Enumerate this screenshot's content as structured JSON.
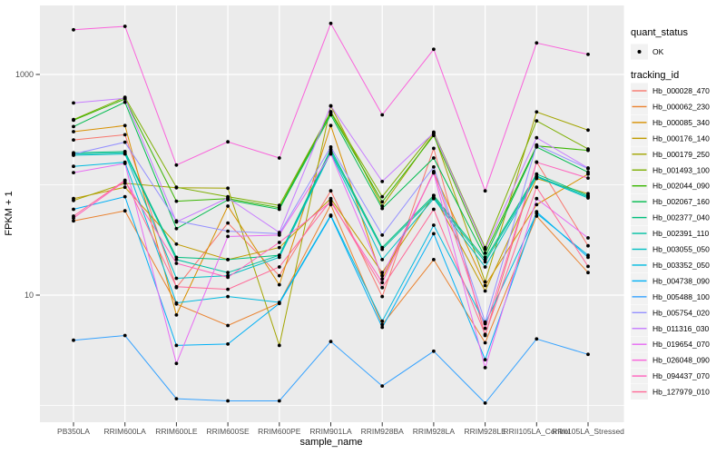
{
  "figure": {
    "background": "#FFFFFF",
    "panel_background": "#EBEBEB",
    "gridline_color": "#FFFFFF",
    "tick_color": "#333333",
    "tick_label_color": "#4D4D4D",
    "point_color": "#000000",
    "legend_key_background": "#F2F2F2"
  },
  "legend": {
    "quant_status_title": "quant_status",
    "quant_status_items": [
      {
        "label": "OK",
        "marker": "point"
      }
    ],
    "tracking_title": "tracking_id"
  },
  "chart_data": {
    "type": "line",
    "scale_y": "log10",
    "title": "",
    "xlabel": "sample_name",
    "ylabel": "FPKM + 1",
    "legend_position": "right",
    "grid": "on",
    "categories": [
      "PB350LA",
      "RRIM600LA",
      "RRIM600LE",
      "RRIM600SE",
      "RRIM600PE",
      "RRIM901LA",
      "RRIM928BA",
      "RRIM928LA",
      "RRIM928LE",
      "RRII105LA_Control",
      "RRII105LA_Stressed"
    ],
    "y_major_ticks": [
      {
        "label": "10",
        "value": 10
      },
      {
        "label": "1000",
        "value": 1000
      }
    ],
    "y_gridline_values": [
      1,
      10,
      100,
      1000
    ],
    "ylim": [
      0.7,
      4200
    ],
    "quant_status": "OK",
    "series": [
      {
        "name": "Hb_000028_470",
        "color": "#F8766D",
        "values": [
          255,
          284,
          11.7,
          45,
          15,
          88,
          9.7,
          214,
          4.3,
          161,
          28
        ]
      },
      {
        "name": "Hb_000062_230",
        "color": "#EA8331",
        "values": [
          47,
          58,
          8.3,
          5.3,
          8.5,
          66,
          5.4,
          21,
          3.7,
          52,
          16
        ]
      },
      {
        "name": "Hb_000085_340",
        "color": "#D89000",
        "values": [
          303,
          344,
          6.6,
          64,
          12.4,
          344,
          14,
          130,
          12.2,
          66,
          125
        ]
      },
      {
        "name": "Hb_000176_140",
        "color": "#C09B00",
        "values": [
          75,
          95,
          29,
          21,
          27,
          75,
          16,
          80,
          10.9,
          114,
          83
        ]
      },
      {
        "name": "Hb_000179_250",
        "color": "#A3A500",
        "values": [
          72,
          103,
          94,
          93,
          3.5,
          518,
          64,
          290,
          13.2,
          457,
          313
        ]
      },
      {
        "name": "Hb_001493_100",
        "color": "#7CAE00",
        "values": [
          390,
          620,
          95,
          78,
          65,
          460,
          78,
          300,
          27,
          380,
          211
        ]
      },
      {
        "name": "Hb_002044_090",
        "color": "#39B600",
        "values": [
          385,
          600,
          71,
          75,
          62,
          450,
          70,
          280,
          24,
          225,
          205
        ]
      },
      {
        "name": "Hb_002067_160",
        "color": "#00BB4E",
        "values": [
          337,
          560,
          40,
          73,
          60,
          430,
          61,
          175,
          22,
          220,
          130
        ]
      },
      {
        "name": "Hb_002377_040",
        "color": "#00BF7D",
        "values": [
          195,
          200,
          22,
          21,
          23,
          210,
          27,
          80,
          21,
          125,
          80
        ]
      },
      {
        "name": "Hb_002391_110",
        "color": "#00C1A3",
        "values": [
          190,
          195,
          21,
          16,
          23,
          200,
          26,
          77,
          20,
          120,
          78
        ]
      },
      {
        "name": "Hb_003055_050",
        "color": "#00BFC4",
        "values": [
          185,
          190,
          14.2,
          15,
          22,
          195,
          21,
          75,
          18,
          118,
          76
        ]
      },
      {
        "name": "Hb_003352_050",
        "color": "#00BAE0",
        "values": [
          147,
          160,
          8.5,
          9.7,
          8.6,
          53,
          5.8,
          43,
          5.5,
          55,
          23
        ]
      },
      {
        "name": "Hb_004738_090",
        "color": "#00B0F6",
        "values": [
          60,
          78,
          3.5,
          3.6,
          8.4,
          52,
          5.1,
          36,
          2.6,
          57,
          22
        ]
      },
      {
        "name": "Hb_005488_100",
        "color": "#35A2FF",
        "values": [
          3.9,
          4.3,
          1.15,
          1.1,
          1.1,
          3.8,
          1.5,
          3.1,
          1.05,
          4.0,
          2.9
        ]
      },
      {
        "name": "Hb_005754_020",
        "color": "#9590FF",
        "values": [
          190,
          243,
          47,
          38,
          36,
          220,
          35,
          145,
          5.7,
          230,
          140
        ]
      },
      {
        "name": "Hb_011316_030",
        "color": "#C77CFF",
        "values": [
          552,
          607,
          46,
          76,
          37,
          520,
          107,
          295,
          26,
          267,
          142
        ]
      },
      {
        "name": "Hb_019654_070",
        "color": "#E76BF3",
        "values": [
          129,
          156,
          2.4,
          34,
          35,
          190,
          15,
          128,
          2.2,
          75,
          33
        ]
      },
      {
        "name": "Hb_026048_090",
        "color": "#FA62DB",
        "values": [
          2540,
          2730,
          151,
          245,
          175,
          2900,
          430,
          1690,
          88,
          1930,
          1520
        ]
      },
      {
        "name": "Hb_094437_070",
        "color": "#FF62BC",
        "values": [
          50,
          108,
          19.4,
          14.5,
          30,
          70,
          13,
          132,
          5.0,
          160,
          115
        ]
      },
      {
        "name": "Hb_127979_010",
        "color": "#FF6A98",
        "values": [
          52,
          110,
          11.9,
          11.3,
          18,
          72,
          11.7,
          60,
          4.4,
          95,
          18.2
        ]
      }
    ]
  }
}
